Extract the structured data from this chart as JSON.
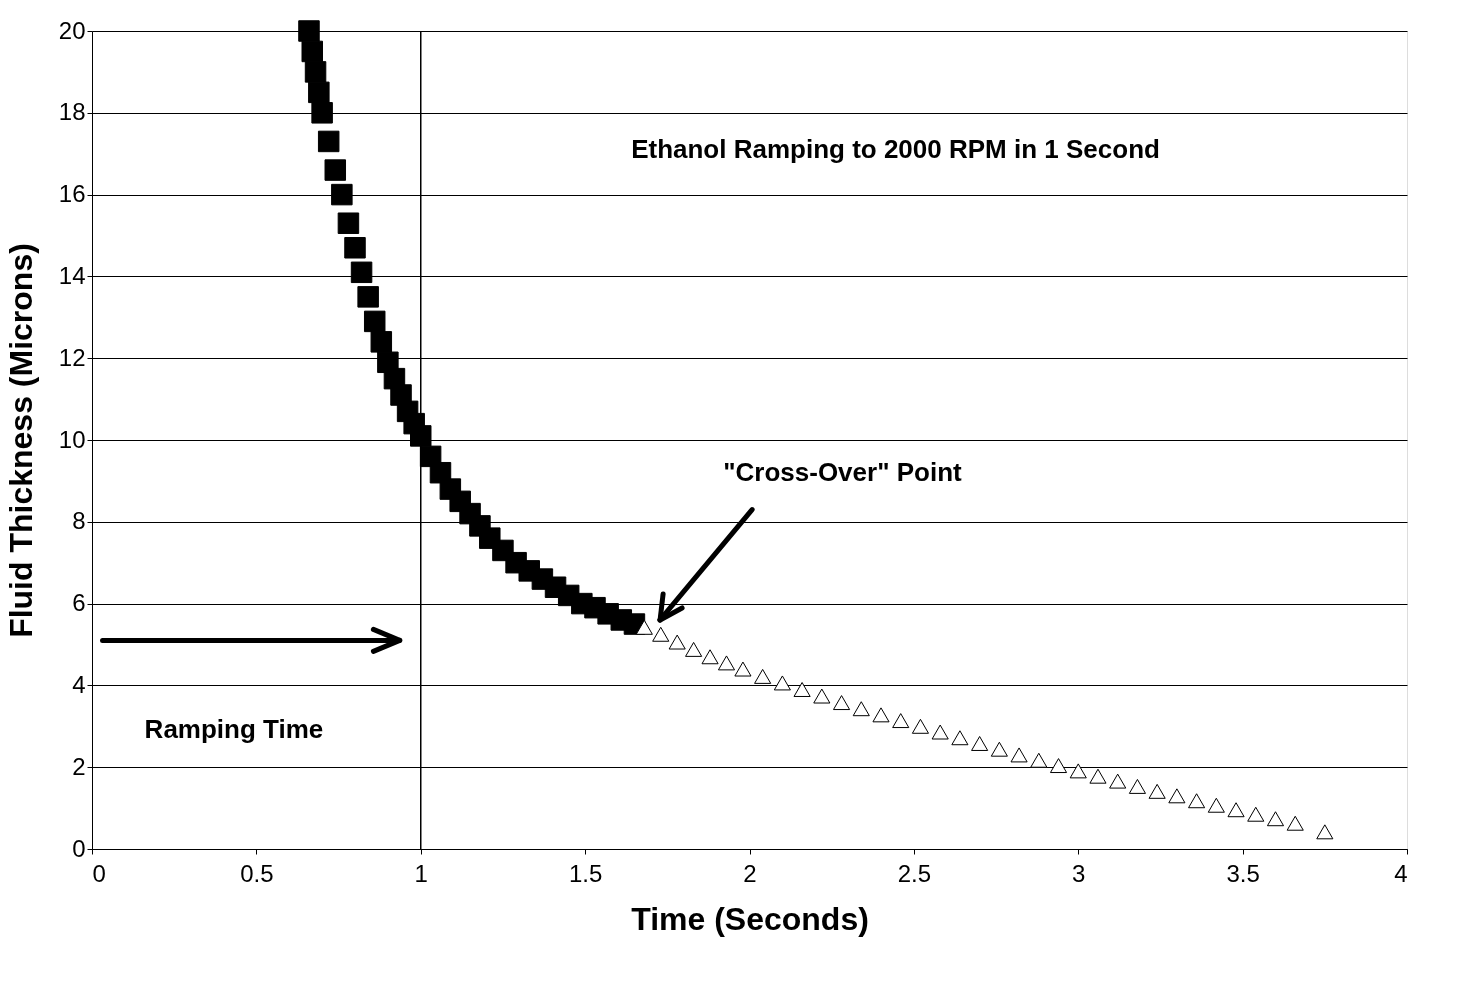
{
  "chart_data": {
    "type": "scatter",
    "xlabel": "Time (Seconds)",
    "ylabel": "Fluid Thickness (Microns)",
    "xlim": [
      0,
      4
    ],
    "xticks": [
      0,
      0.5,
      1,
      1.5,
      2,
      2.5,
      3,
      3.5,
      4
    ],
    "ylim": [
      0,
      20
    ],
    "yticks": [
      0,
      2,
      4,
      6,
      8,
      10,
      12,
      14,
      16,
      18,
      20
    ],
    "grid": "y",
    "series": [
      {
        "color": "#000000",
        "marker": "square",
        "x": [
          0.66,
          0.67,
          0.68,
          0.69,
          0.7,
          0.72,
          0.74,
          0.76,
          0.78,
          0.8,
          0.82,
          0.84,
          0.86,
          0.88,
          0.9,
          0.92,
          0.94,
          0.96,
          0.98,
          1.0,
          1.03,
          1.06,
          1.09,
          1.12,
          1.15,
          1.18,
          1.21,
          1.25,
          1.29,
          1.33,
          1.37,
          1.41,
          1.45,
          1.49,
          1.53,
          1.57,
          1.61,
          1.65
        ],
        "values": [
          20.0,
          19.5,
          19.0,
          18.5,
          18.0,
          17.3,
          16.6,
          16.0,
          15.3,
          14.7,
          14.1,
          13.5,
          12.9,
          12.4,
          11.9,
          11.5,
          11.1,
          10.7,
          10.4,
          10.1,
          9.6,
          9.2,
          8.8,
          8.5,
          8.2,
          7.9,
          7.6,
          7.3,
          7.0,
          6.8,
          6.6,
          6.4,
          6.2,
          6.0,
          5.9,
          5.75,
          5.6,
          5.5
        ]
      },
      {
        "color": "#ffffff",
        "marker": "triangle",
        "x": [
          1.68,
          1.73,
          1.78,
          1.83,
          1.88,
          1.93,
          1.98,
          2.04,
          2.1,
          2.16,
          2.22,
          2.28,
          2.34,
          2.4,
          2.46,
          2.52,
          2.58,
          2.64,
          2.7,
          2.76,
          2.82,
          2.88,
          2.94,
          3.0,
          3.06,
          3.12,
          3.18,
          3.24,
          3.3,
          3.36,
          3.42,
          3.48,
          3.54,
          3.6,
          3.66,
          3.75
        ],
        "values": [
          5.42,
          5.25,
          5.06,
          4.88,
          4.7,
          4.55,
          4.4,
          4.22,
          4.06,
          3.9,
          3.74,
          3.58,
          3.43,
          3.28,
          3.14,
          3.0,
          2.86,
          2.72,
          2.58,
          2.44,
          2.3,
          2.17,
          2.04,
          1.91,
          1.78,
          1.66,
          1.53,
          1.41,
          1.3,
          1.18,
          1.07,
          0.96,
          0.85,
          0.74,
          0.63,
          0.42
        ]
      }
    ],
    "ref_lines": [
      {
        "axis": "x",
        "value": 1,
        "label": null,
        "color": "#000000"
      }
    ],
    "annotations": [
      "Ethanol Ramping to 2000 RPM in 1 Second",
      "Ramping Time",
      "\"Cross-Over\" Point"
    ]
  }
}
